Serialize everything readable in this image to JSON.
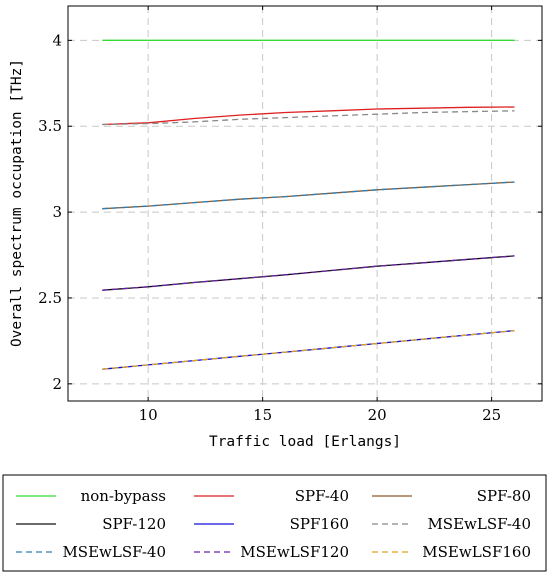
{
  "chart_data": {
    "type": "line",
    "xlabel": "Traffic load [Erlangs]",
    "ylabel": "Overall spectrum occupation [THz]",
    "xlim": [
      6.5,
      27.2
    ],
    "ylim": [
      1.9,
      4.2
    ],
    "xticks": [
      10,
      15,
      20,
      25
    ],
    "yticks": [
      2,
      2.5,
      3,
      3.5,
      4
    ],
    "ytick_labels": [
      "2",
      "2.5",
      "3",
      "3.5",
      "4"
    ],
    "grid": true,
    "grid_style": "dashed",
    "legend_position": "bottom",
    "x": [
      8,
      10,
      12,
      14,
      16,
      18,
      20,
      22,
      24,
      26
    ],
    "series": [
      {
        "name": "non-bypass",
        "color": "#33dd33",
        "dash": "solid",
        "values": [
          4.0,
          4.0,
          4.0,
          4.0,
          4.0,
          4.0,
          4.0,
          4.0,
          4.0,
          4.0
        ]
      },
      {
        "name": "SPF-40",
        "color": "#dd2020",
        "dash": "solid",
        "values": [
          3.51,
          3.52,
          3.545,
          3.565,
          3.58,
          3.59,
          3.6,
          3.605,
          3.61,
          3.612
        ]
      },
      {
        "name": "SPF-80",
        "color": "#8b5a2b",
        "dash": "solid",
        "values": [
          3.02,
          3.035,
          3.055,
          3.075,
          3.09,
          3.11,
          3.13,
          3.145,
          3.16,
          3.175
        ]
      },
      {
        "name": "SPF-120",
        "color": "#111111",
        "dash": "solid",
        "values": [
          2.545,
          2.565,
          2.59,
          2.612,
          2.635,
          2.66,
          2.685,
          2.705,
          2.725,
          2.745
        ]
      },
      {
        "name": "SPF160",
        "color": "#1111dd",
        "dash": "solid",
        "values": [
          2.085,
          2.11,
          2.135,
          2.16,
          2.185,
          2.21,
          2.235,
          2.26,
          2.285,
          2.31
        ]
      },
      {
        "name": "MSEwLSF-40",
        "color": "#888888",
        "dash": "dashed",
        "values": [
          3.51,
          3.515,
          3.525,
          3.54,
          3.55,
          3.56,
          3.57,
          3.58,
          3.585,
          3.59
        ]
      },
      {
        "name": "MSEwLSF-40",
        "color": "#2f7fb5",
        "dash": "dashed",
        "values": [
          3.02,
          3.035,
          3.055,
          3.075,
          3.09,
          3.11,
          3.13,
          3.145,
          3.16,
          3.175
        ]
      },
      {
        "name": "MSEwLSF120",
        "color": "#6a1fa8",
        "dash": "dashed",
        "values": [
          2.545,
          2.565,
          2.59,
          2.612,
          2.635,
          2.66,
          2.685,
          2.705,
          2.725,
          2.745
        ]
      },
      {
        "name": "MSEwLSF160",
        "color": "#e0a020",
        "dash": "dashed",
        "values": [
          2.085,
          2.11,
          2.135,
          2.16,
          2.185,
          2.21,
          2.235,
          2.26,
          2.285,
          2.31
        ]
      }
    ]
  }
}
